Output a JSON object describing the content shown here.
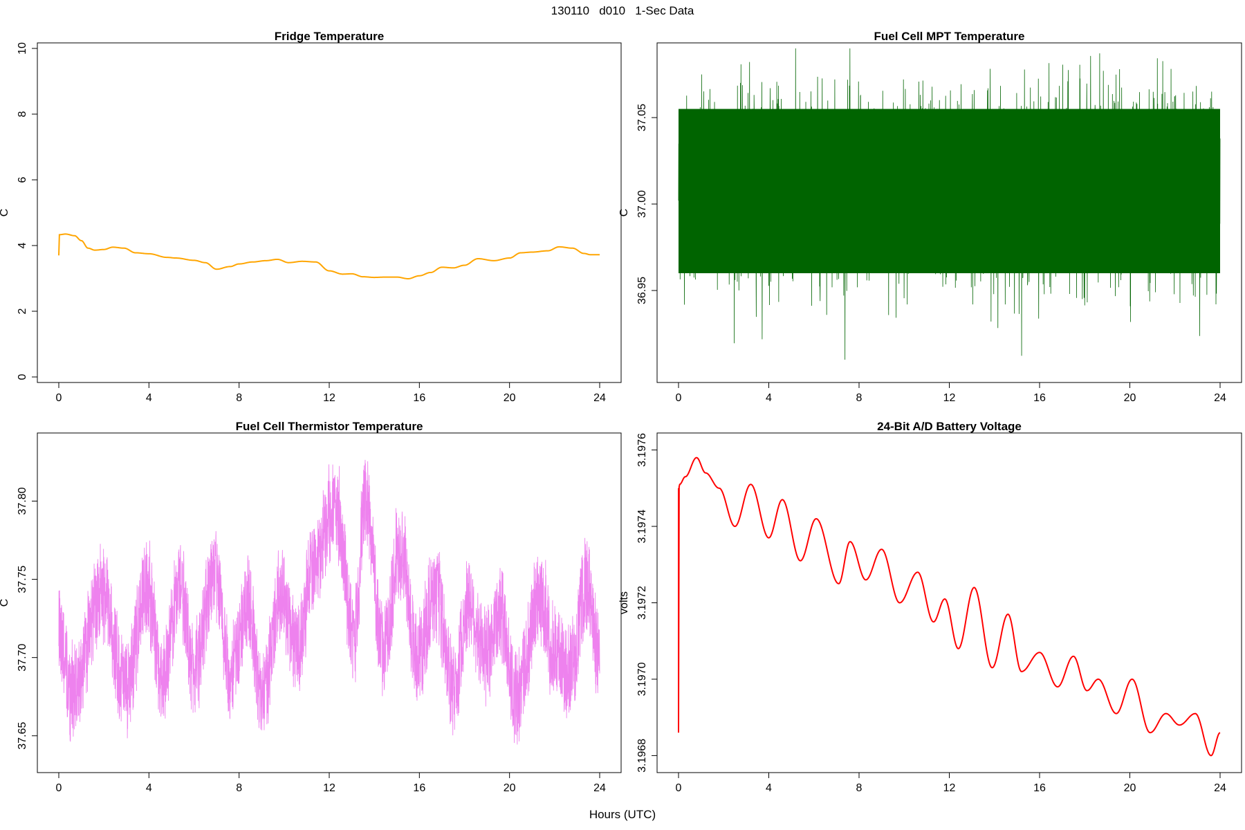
{
  "figure": {
    "title": "130110   d010   1-Sec Data",
    "xlabel": "Hours (UTC)"
  },
  "chart_data": [
    {
      "type": "line",
      "title": "Fridge Temperature",
      "ylabel": "C",
      "color": "#FFA500",
      "xlim": [
        0,
        24
      ],
      "ylim": [
        0,
        10
      ],
      "xticks": [
        0,
        4,
        8,
        12,
        16,
        20,
        24
      ],
      "yticks": [
        0,
        2,
        4,
        6,
        8,
        10
      ],
      "ytick_labels": [
        "0",
        "2",
        "4",
        "6",
        "8",
        "10"
      ],
      "x": [
        0,
        0.02,
        0.3,
        0.7,
        1.0,
        1.3,
        1.6,
        2.0,
        2.4,
        2.9,
        3.4,
        4.0,
        4.8,
        5.2,
        6.0,
        6.5,
        7.0,
        7.6,
        8.0,
        8.6,
        9.2,
        9.7,
        10.2,
        10.8,
        11.4,
        12.0,
        12.6,
        13.0,
        13.5,
        14.0,
        14.5,
        15.0,
        15.5,
        16.0,
        16.5,
        17.0,
        17.5,
        18.0,
        18.6,
        19.3,
        20.0,
        20.5,
        21.0,
        21.7,
        22.2,
        22.8,
        23.3,
        23.6,
        24.0
      ],
      "y": [
        3.7,
        4.33,
        4.35,
        4.3,
        4.15,
        3.92,
        3.86,
        3.88,
        3.95,
        3.92,
        3.78,
        3.75,
        3.64,
        3.62,
        3.55,
        3.48,
        3.28,
        3.36,
        3.44,
        3.5,
        3.54,
        3.58,
        3.48,
        3.52,
        3.5,
        3.23,
        3.13,
        3.14,
        3.05,
        3.03,
        3.04,
        3.04,
        2.99,
        3.08,
        3.18,
        3.34,
        3.32,
        3.4,
        3.6,
        3.54,
        3.62,
        3.78,
        3.8,
        3.84,
        3.96,
        3.92,
        3.76,
        3.72,
        3.72
      ]
    },
    {
      "type": "line",
      "title": "Fuel Cell MPT Temperature",
      "ylabel": "C",
      "color": "#006400",
      "xlim": [
        0,
        24
      ],
      "ylim": [
        36.9,
        37.09
      ],
      "xticks": [
        0,
        4,
        8,
        12,
        16,
        20,
        24
      ],
      "yticks": [
        36.95,
        37.0,
        37.05
      ],
      "ytick_labels": [
        "36.95",
        "37.00",
        "37.05"
      ],
      "description_free_note": "",
      "center": 37.01,
      "band": [
        36.96,
        37.055
      ],
      "extremes": [
        36.91,
        37.09
      ]
    },
    {
      "type": "line",
      "title": "Fuel Cell Thermistor Temperature",
      "ylabel": "C",
      "color": "#EE82EE",
      "xlim": [
        0,
        24
      ],
      "ylim": [
        37.63,
        37.84
      ],
      "xticks": [
        0,
        4,
        8,
        12,
        16,
        20,
        24
      ],
      "yticks": [
        37.65,
        37.7,
        37.75,
        37.8
      ],
      "ytick_labels": [
        "37.65",
        "37.70",
        "37.75",
        "37.80"
      ],
      "x": [
        0,
        0.6,
        1.9,
        3.0,
        3.9,
        4.6,
        5.4,
        6.0,
        6.9,
        7.6,
        8.4,
        9.0,
        9.9,
        10.6,
        11.2,
        12.3,
        13.1,
        13.6,
        14.4,
        15.2,
        15.9,
        16.7,
        17.5,
        18.2,
        18.9,
        19.6,
        20.3,
        21.4,
        21.9,
        22.7,
        23.4,
        24.0
      ],
      "y": [
        37.72,
        37.675,
        37.74,
        37.68,
        37.745,
        37.685,
        37.748,
        37.69,
        37.755,
        37.69,
        37.735,
        37.675,
        37.74,
        37.705,
        37.755,
        37.795,
        37.71,
        37.8,
        37.705,
        37.77,
        37.7,
        37.74,
        37.68,
        37.735,
        37.7,
        37.73,
        37.675,
        37.74,
        37.705,
        37.69,
        37.745,
        37.7
      ],
      "noise": 0.028
    },
    {
      "type": "line",
      "title": "24-Bit A/D Battery Voltage",
      "ylabel": "volts",
      "color": "#FF0000",
      "xlim": [
        0,
        24
      ],
      "ylim": [
        3.19677,
        3.19763
      ],
      "xticks": [
        0,
        4,
        8,
        12,
        16,
        20,
        24
      ],
      "yticks": [
        3.1968,
        3.197,
        3.1972,
        3.1974,
        3.1976
      ],
      "ytick_labels": [
        "3.1968",
        "3.1970",
        "3.1972",
        "3.1974",
        "3.1976"
      ],
      "x": [
        0,
        0.01,
        0.05,
        0.3,
        0.8,
        1.2,
        1.8,
        2.5,
        3.2,
        4.0,
        4.6,
        5.4,
        6.1,
        7.1,
        7.6,
        8.3,
        9.0,
        9.8,
        10.6,
        11.3,
        11.8,
        12.4,
        13.1,
        13.9,
        14.6,
        15.2,
        16.0,
        16.8,
        17.5,
        18.1,
        18.6,
        19.4,
        20.1,
        20.9,
        21.6,
        22.2,
        22.9,
        23.6,
        24.0
      ],
      "y": [
        3.19686,
        3.1975,
        3.19751,
        3.19753,
        3.19758,
        3.19754,
        3.1975,
        3.1974,
        3.19751,
        3.19737,
        3.19747,
        3.19731,
        3.19742,
        3.19725,
        3.19736,
        3.19726,
        3.19734,
        3.1972,
        3.19728,
        3.19715,
        3.19721,
        3.19708,
        3.19724,
        3.19703,
        3.19717,
        3.19702,
        3.19707,
        3.19698,
        3.19706,
        3.19697,
        3.197,
        3.19691,
        3.197,
        3.19686,
        3.19691,
        3.19688,
        3.19691,
        3.1968,
        3.19686
      ]
    }
  ]
}
